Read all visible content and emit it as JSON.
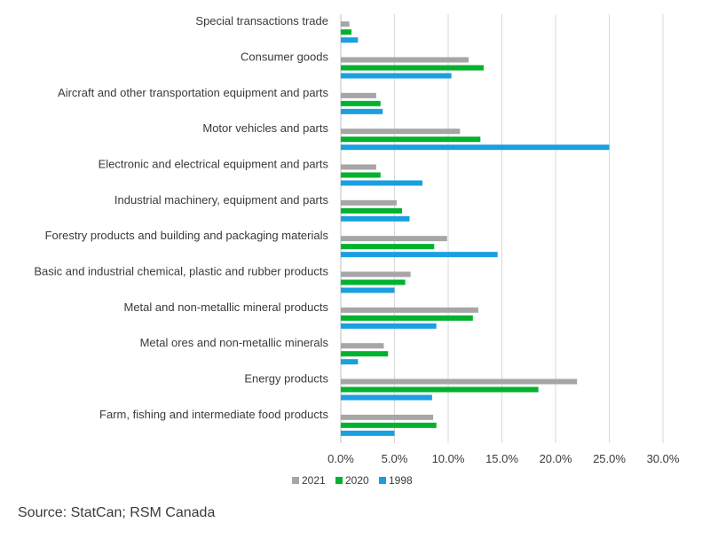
{
  "chart_data": {
    "type": "bar",
    "orientation": "horizontal",
    "categories": [
      "Special transactions trade",
      "Consumer goods",
      "Aircraft and other transportation equipment and parts",
      "Motor vehicles and parts",
      "Electronic and electrical equipment and parts",
      "Industrial machinery, equipment and parts",
      "Forestry products and building and packaging materials",
      "Basic and industrial chemical, plastic and rubber products",
      "Metal and non-metallic mineral products",
      "Metal ores and non-metallic minerals",
      "Energy products",
      "Farm, fishing and intermediate food products"
    ],
    "series": [
      {
        "name": "2021",
        "color": "#a6a6a6",
        "values": [
          0.8,
          11.9,
          3.3,
          11.1,
          3.3,
          5.2,
          9.9,
          6.5,
          12.8,
          4.0,
          22.0,
          8.6
        ]
      },
      {
        "name": "2020",
        "color": "#00b22d",
        "values": [
          1.0,
          13.3,
          3.7,
          13.0,
          3.7,
          5.7,
          8.7,
          6.0,
          12.3,
          4.4,
          18.4,
          8.9
        ]
      },
      {
        "name": "1998",
        "color": "#1a9fe0",
        "values": [
          1.6,
          10.3,
          3.9,
          25.0,
          7.6,
          6.4,
          14.6,
          5.0,
          8.9,
          1.6,
          8.5,
          5.0
        ]
      }
    ],
    "xlim": [
      0,
      30
    ],
    "xticks": [
      "0.0%",
      "5.0%",
      "10.0%",
      "15.0%",
      "20.0%",
      "25.0%",
      "30.0%"
    ],
    "grid": true,
    "legend_position": "bottom"
  },
  "source": "Source: StatCan; RSM Canada"
}
